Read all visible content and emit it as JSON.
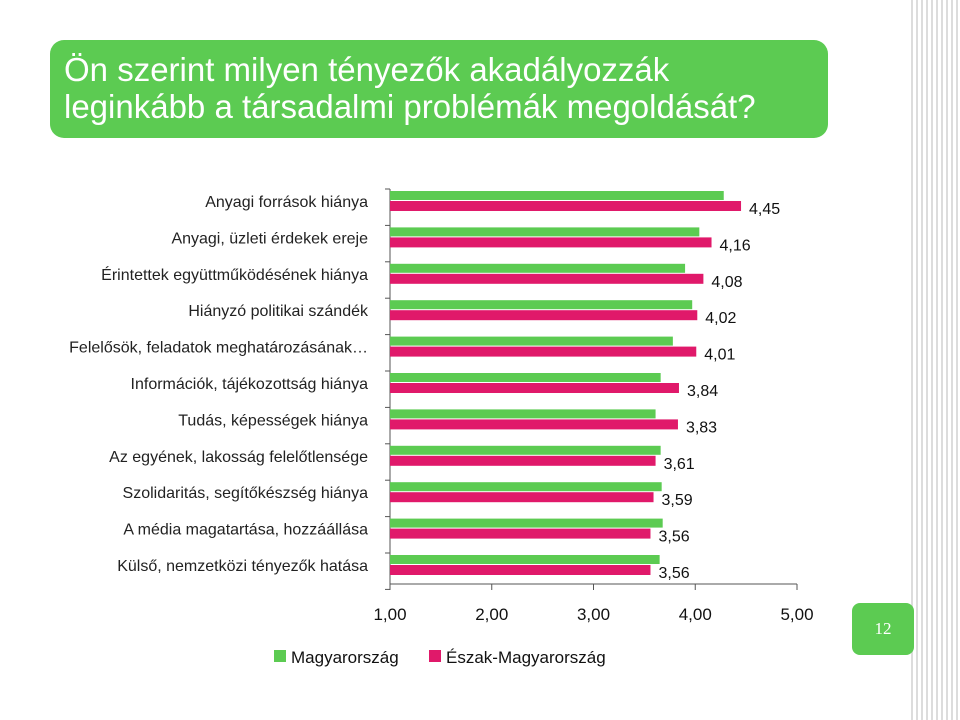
{
  "title": "Ön szerint milyen tényezők akadályozzák\nleginkább a társadalmi problémák megoldását?",
  "page_number": "12",
  "colors": {
    "title_bg": "#5ccb52",
    "series_1": "#5ccb52",
    "series_2": "#e0196a"
  },
  "chart_data": {
    "type": "bar",
    "orientation": "horizontal",
    "categories": [
      "Anyagi források hiánya",
      "Anyagi, üzleti érdekek ereje",
      "Érintettek együttműködésének hiánya",
      "Hiányzó politikai szándék",
      "Felelősök, feladatok meghatározásának…",
      "Információk, tájékozottság hiánya",
      "Tudás, képességek hiánya",
      "Az egyének, lakosság felelőtlensége",
      "Szolidaritás, segítőkészség hiánya",
      "A média magatartása, hozzáállása",
      "Külső, nemzetközi tényezők hatása"
    ],
    "series": [
      {
        "name": "Magyarország",
        "color": "#5ccb52",
        "values": [
          4.28,
          4.04,
          3.9,
          3.97,
          3.78,
          3.66,
          3.61,
          3.66,
          3.67,
          3.68,
          3.65
        ]
      },
      {
        "name": "Észak-Magyarország",
        "color": "#e0196a",
        "values": [
          4.45,
          4.16,
          4.08,
          4.02,
          4.01,
          3.84,
          3.83,
          3.61,
          3.59,
          3.56,
          3.56
        ],
        "labels": [
          "4,45",
          "4,16",
          "4,08",
          "4,02",
          "4,01",
          "3,84",
          "3,83",
          "3,61",
          "3,59",
          "3,56",
          "3,56"
        ]
      }
    ],
    "xlim": [
      1,
      5
    ],
    "xticks": [
      "1,00",
      "2,00",
      "3,00",
      "4,00",
      "5,00"
    ],
    "xtick_values": [
      1,
      2,
      3,
      4,
      5
    ],
    "legend": "bottom",
    "grid": false
  }
}
